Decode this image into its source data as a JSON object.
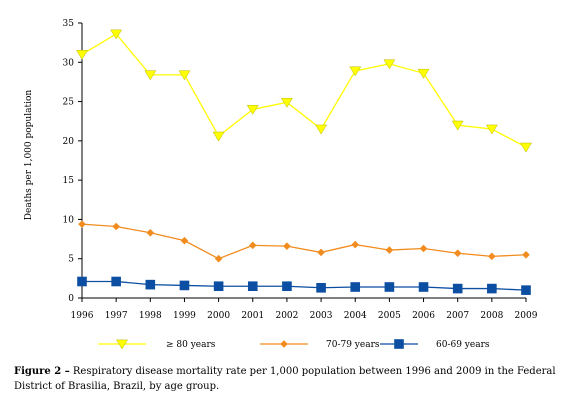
{
  "caption": {
    "label": "Figure 2 –",
    "text": " Respiratory disease mortality rate per 1,000 population between 1996 and 2009 in the Federal District of Brasilia, Brazil, by age group."
  },
  "chart_data": {
    "type": "line",
    "ylabel": "Deaths per 1,000 population",
    "ylim": [
      0,
      35
    ],
    "yticks": [
      0,
      5,
      10,
      15,
      20,
      25,
      30,
      35
    ],
    "x": [
      "1996",
      "1997",
      "1998",
      "1999",
      "2000",
      "2001",
      "2002",
      "2003",
      "2004",
      "2005",
      "2006",
      "2007",
      "2008",
      "2009"
    ],
    "grid": false,
    "legend_position": "bottom",
    "series": [
      {
        "name": "≥ 80 years",
        "color": "#ffff00",
        "marker": "triangle-down",
        "values": [
          31.0,
          33.6,
          28.4,
          28.4,
          20.6,
          24.0,
          24.9,
          21.5,
          28.9,
          29.8,
          28.6,
          22.0,
          21.5,
          19.2
        ]
      },
      {
        "name": "70-79 years",
        "color": "#f28c1e",
        "marker": "diamond",
        "values": [
          9.4,
          9.1,
          8.3,
          7.3,
          5.0,
          6.7,
          6.6,
          5.8,
          6.8,
          6.1,
          6.3,
          5.7,
          5.3,
          5.5
        ]
      },
      {
        "name": "60-69 years",
        "color": "#0b4ea2",
        "marker": "square",
        "values": [
          2.1,
          2.1,
          1.7,
          1.6,
          1.5,
          1.5,
          1.5,
          1.3,
          1.4,
          1.4,
          1.4,
          1.2,
          1.2,
          1.0
        ]
      }
    ]
  }
}
